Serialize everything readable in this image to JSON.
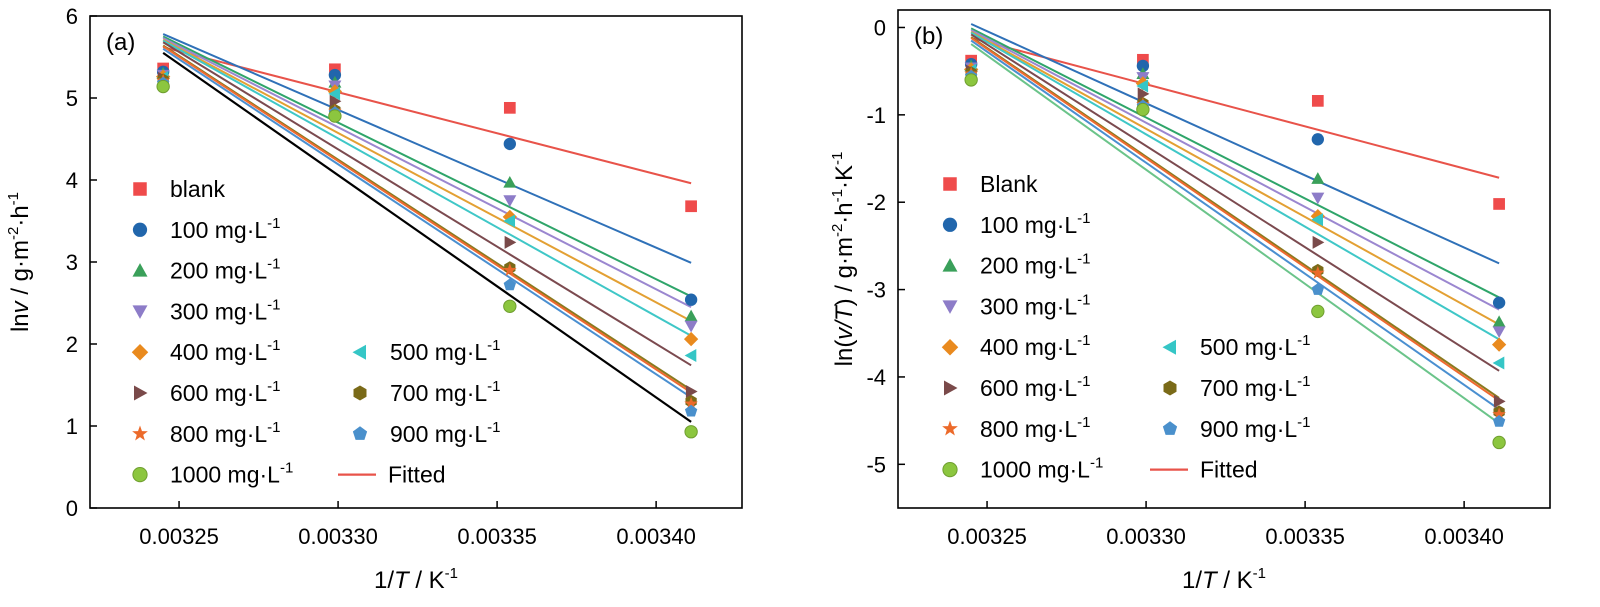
{
  "chart_data": [
    {
      "type": "scatter",
      "panel_label": "(a)",
      "xlabel": {
        "main": "1/",
        "italic": "T",
        "unit": " / K",
        "sup": "-1"
      },
      "ylabel": {
        "pre": "ln",
        "italic": "v",
        "post": " / g·m",
        "sup1": "-2",
        "mid": "·h",
        "sup2": "-1"
      },
      "xlim": [
        0.003222,
        0.003427
      ],
      "ylim": [
        0,
        6
      ],
      "x_ticks": [
        0.00325,
        0.0033,
        0.00335,
        0.0034
      ],
      "x_tick_labels": [
        "0.00325",
        "0.00330",
        "0.00335",
        "0.00340"
      ],
      "y_ticks": [
        0,
        1,
        2,
        3,
        4,
        5,
        6
      ],
      "y_tick_labels": [
        "0",
        "1",
        "2",
        "3",
        "4",
        "5",
        "6"
      ],
      "x": [
        0.003245,
        0.003299,
        0.003354,
        0.003411
      ],
      "legend_placement": "center-left",
      "series": [
        {
          "name": "blank",
          "sup": "",
          "marker": "square",
          "color": "#ef4b4b",
          "line_color": "#e8534a",
          "values": [
            5.36,
            5.35,
            4.88,
            3.68
          ],
          "fit": [
            5.62,
            3.96
          ]
        },
        {
          "name": "100 mg·L",
          "sup": "-1",
          "marker": "circle",
          "color": "#2166ac",
          "line_color": "#2f71b8",
          "values": [
            5.32,
            5.28,
            4.44,
            2.54
          ],
          "fit": [
            5.78,
            2.99
          ]
        },
        {
          "name": "200 mg·L",
          "sup": "-1",
          "marker": "triangle-up",
          "color": "#3aa05a",
          "line_color": "#2fa56a",
          "values": [
            5.3,
            5.19,
            3.97,
            2.34
          ],
          "fit": [
            5.75,
            2.58
          ]
        },
        {
          "name": "300 mg·L",
          "sup": "-1",
          "marker": "triangle-down",
          "color": "#8d7cc8",
          "line_color": "#9b87d0",
          "values": [
            5.28,
            5.15,
            3.75,
            2.22
          ],
          "fit": [
            5.73,
            2.45
          ]
        },
        {
          "name": "400 mg·L",
          "sup": "-1",
          "marker": "diamond",
          "color": "#e98a1e",
          "line_color": "#e3a033",
          "values": [
            5.26,
            5.08,
            3.55,
            2.06
          ],
          "fit": [
            5.71,
            2.28
          ]
        },
        {
          "name": "500 mg·L",
          "sup": "-1",
          "marker": "triangle-left",
          "color": "#35c6c6",
          "line_color": "#3fc7c7",
          "values": [
            5.25,
            5.05,
            3.5,
            1.86
          ],
          "fit": [
            5.7,
            2.1
          ]
        },
        {
          "name": "600 mg·L",
          "sup": "-1",
          "marker": "triangle-right",
          "color": "#7a4a4a",
          "line_color": "#7b4a4f",
          "values": [
            5.24,
            4.96,
            3.24,
            1.42
          ],
          "fit": [
            5.68,
            1.74
          ]
        },
        {
          "name": "700 mg·L",
          "sup": "-1",
          "marker": "hexagon",
          "color": "#7a6a18",
          "line_color": "#8a7a1e",
          "values": [
            5.22,
            4.85,
            2.93,
            1.3
          ],
          "fit": [
            5.64,
            1.44
          ]
        },
        {
          "name": "800 mg·L",
          "sup": "-1",
          "marker": "star",
          "color": "#ec6a2a",
          "line_color": "#ef6a30",
          "values": [
            5.21,
            4.84,
            2.9,
            1.27
          ],
          "fit": [
            5.63,
            1.41
          ]
        },
        {
          "name": "900 mg·L",
          "sup": "-1",
          "marker": "pentagon",
          "color": "#4a90cc",
          "line_color": "#4a8fd0",
          "values": [
            5.18,
            4.82,
            2.72,
            1.18
          ],
          "fit": [
            5.6,
            1.35
          ]
        },
        {
          "name": "1000 mg·L",
          "sup": "-1",
          "marker": "sphere",
          "color": "#8cc63f",
          "line_color": "#000000",
          "values": [
            5.14,
            4.78,
            2.46,
            0.93
          ],
          "fit": [
            5.55,
            1.05
          ]
        }
      ],
      "fitted_label": "Fitted",
      "fitted_color": "#e8534a"
    },
    {
      "type": "scatter",
      "panel_label": "(b)",
      "xlabel": {
        "main": "1/",
        "italic": "T",
        "unit": " / K",
        "sup": "-1"
      },
      "ylabel": {
        "pre": "ln(",
        "italic": "v/T",
        "post": ") / g·m",
        "sup1": "-2",
        "mid": "·h",
        "sup2": "-1",
        "tail": "·K",
        "sup3": "-1"
      },
      "xlim": [
        0.003222,
        0.003427
      ],
      "ylim": [
        -5.5,
        0.2
      ],
      "x_ticks": [
        0.00325,
        0.0033,
        0.00335,
        0.0034
      ],
      "x_tick_labels": [
        "0.00325",
        "0.00330",
        "0.00335",
        "0.00340"
      ],
      "y_ticks": [
        0,
        -1,
        -2,
        -3,
        -4,
        -5
      ],
      "y_tick_labels": [
        "0",
        "-1",
        "-2",
        "-3",
        "-4",
        "-5"
      ],
      "x": [
        0.003245,
        0.003299,
        0.003354,
        0.003411
      ],
      "legend_placement": "center-left",
      "series": [
        {
          "name": "Blank",
          "sup": "",
          "marker": "square",
          "color": "#ef4b4b",
          "line_color": "#e8534a",
          "values": [
            -0.38,
            -0.37,
            -0.84,
            -2.02
          ],
          "fit": [
            -0.12,
            -1.72
          ]
        },
        {
          "name": "100 mg·L",
          "sup": "-1",
          "marker": "circle",
          "color": "#2166ac",
          "line_color": "#2f71b8",
          "values": [
            -0.42,
            -0.44,
            -1.28,
            -3.15
          ],
          "fit": [
            0.04,
            -2.7
          ]
        },
        {
          "name": "200 mg·L",
          "sup": "-1",
          "marker": "triangle-up",
          "color": "#3aa05a",
          "line_color": "#2fa56a",
          "values": [
            -0.44,
            -0.53,
            -1.73,
            -3.37
          ],
          "fit": [
            -0.01,
            -3.09
          ]
        },
        {
          "name": "300 mg·L",
          "sup": "-1",
          "marker": "triangle-down",
          "color": "#8d7cc8",
          "line_color": "#9b87d0",
          "values": [
            -0.46,
            -0.57,
            -1.95,
            -3.48
          ],
          "fit": [
            -0.03,
            -3.23
          ]
        },
        {
          "name": "400 mg·L",
          "sup": "-1",
          "marker": "diamond",
          "color": "#e98a1e",
          "line_color": "#e3a033",
          "values": [
            -0.48,
            -0.64,
            -2.16,
            -3.63
          ],
          "fit": [
            -0.05,
            -3.4
          ]
        },
        {
          "name": "500 mg·L",
          "sup": "-1",
          "marker": "triangle-left",
          "color": "#35c6c6",
          "line_color": "#3fc7c7",
          "values": [
            -0.49,
            -0.67,
            -2.2,
            -3.84
          ],
          "fit": [
            -0.06,
            -3.57
          ]
        },
        {
          "name": "600 mg·L",
          "sup": "-1",
          "marker": "triangle-right",
          "color": "#7a4a4a",
          "line_color": "#7b4a4f",
          "values": [
            -0.5,
            -0.76,
            -2.46,
            -4.28
          ],
          "fit": [
            -0.08,
            -3.93
          ]
        },
        {
          "name": "700 mg·L",
          "sup": "-1",
          "marker": "hexagon",
          "color": "#7a6a18",
          "line_color": "#8a7a1e",
          "values": [
            -0.52,
            -0.87,
            -2.78,
            -4.4
          ],
          "fit": [
            -0.11,
            -4.24
          ]
        },
        {
          "name": "800 mg·L",
          "sup": "-1",
          "marker": "star",
          "color": "#ec6a2a",
          "line_color": "#ef6a30",
          "values": [
            -0.53,
            -0.88,
            -2.81,
            -4.43
          ],
          "fit": [
            -0.12,
            -4.27
          ]
        },
        {
          "name": "900 mg·L",
          "sup": "-1",
          "marker": "pentagon",
          "color": "#4a90cc",
          "line_color": "#4a8fd0",
          "values": [
            -0.56,
            -0.9,
            -3.0,
            -4.51
          ],
          "fit": [
            -0.15,
            -4.37
          ]
        },
        {
          "name": "1000 mg·L",
          "sup": "-1",
          "marker": "sphere",
          "color": "#8cc63f",
          "line_color": "#6bc48a",
          "values": [
            -0.6,
            -0.94,
            -3.25,
            -4.75
          ],
          "fit": [
            -0.19,
            -4.53
          ]
        }
      ],
      "fitted_label": "Fitted",
      "fitted_color": "#e8534a"
    }
  ]
}
